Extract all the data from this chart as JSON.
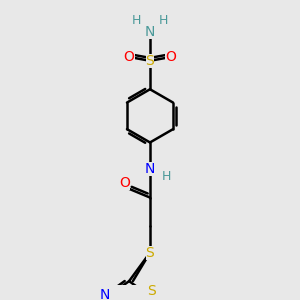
{
  "background_color": "#e8e8e8",
  "atom_colors": {
    "C": "#000000",
    "H": "#4a9999",
    "N": "#0000ff",
    "O": "#ff0000",
    "S": "#ccaa00"
  },
  "bond_color": "#000000",
  "bond_width": 1.8,
  "figsize": [
    3.0,
    3.0
  ],
  "dpi": 100,
  "xlim": [
    0.5,
    2.5
  ],
  "ylim": [
    0.1,
    3.1
  ]
}
